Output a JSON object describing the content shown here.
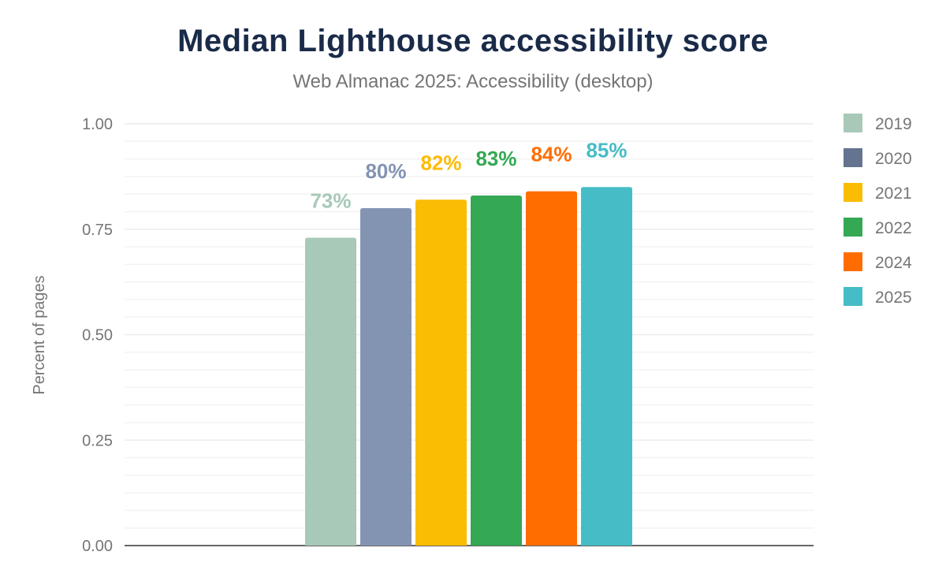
{
  "chart_data": {
    "type": "bar",
    "title": "Median Lighthouse accessibility score",
    "subtitle": "Web Almanac 2025: Accessibility (desktop)",
    "xlabel": "",
    "ylabel": "Percent of pages",
    "ylim": [
      0,
      1
    ],
    "yticks": [
      "0.00",
      "0.25",
      "0.50",
      "0.75",
      "1.00"
    ],
    "grid": true,
    "legend_position": "right",
    "series": [
      {
        "name": "2019",
        "value": 0.73,
        "label": "73%",
        "color": "#a8c9b8",
        "legend_color": "#a8c9b8"
      },
      {
        "name": "2020",
        "value": 0.8,
        "label": "80%",
        "color": "#8394b3",
        "legend_color": "#64738f"
      },
      {
        "name": "2021",
        "value": 0.82,
        "label": "82%",
        "color": "#fbbc04",
        "legend_color": "#fbbc04"
      },
      {
        "name": "2022",
        "value": 0.83,
        "label": "83%",
        "color": "#34a853",
        "legend_color": "#34a853"
      },
      {
        "name": "2024",
        "value": 0.84,
        "label": "84%",
        "color": "#ff6d01",
        "legend_color": "#ff6d01"
      },
      {
        "name": "2025",
        "value": 0.85,
        "label": "85%",
        "color": "#46bdc6",
        "legend_color": "#46bdc6"
      }
    ]
  }
}
